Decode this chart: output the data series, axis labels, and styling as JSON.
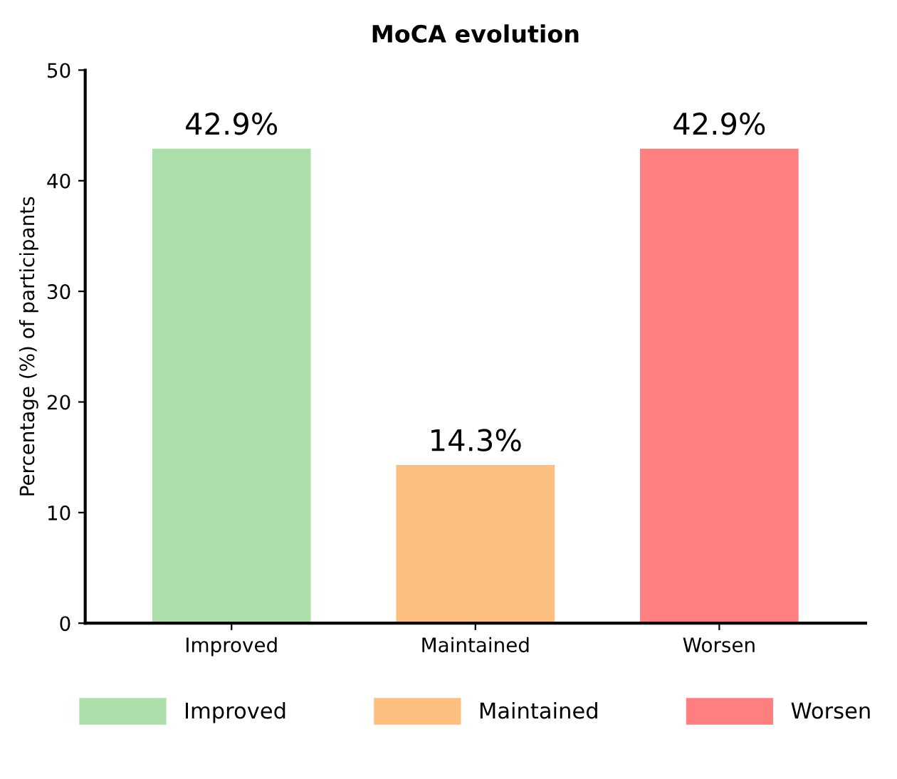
{
  "chart_data": {
    "type": "bar",
    "title": "MoCA evolution",
    "ylabel": "Percentage (%) of participants",
    "categories": [
      "Improved",
      "Maintained",
      "Worsen"
    ],
    "series": [
      {
        "name": "Improved",
        "color": "#addfad",
        "values": [
          42.9,
          null,
          null
        ],
        "value_labels": [
          "42.9%",
          null,
          null
        ]
      },
      {
        "name": "Maintained",
        "color": "#fdbf7f",
        "values": [
          null,
          14.3,
          null
        ],
        "value_labels": [
          null,
          "14.3%",
          null
        ]
      },
      {
        "name": "Worsen",
        "color": "#fe7f7f",
        "values": [
          null,
          null,
          42.9
        ],
        "value_labels": [
          null,
          null,
          "42.9%"
        ]
      }
    ],
    "ylim": [
      0,
      50
    ],
    "yticks": [
      0,
      10,
      20,
      30,
      40,
      50
    ],
    "grid": false,
    "legend": "bottom"
  }
}
